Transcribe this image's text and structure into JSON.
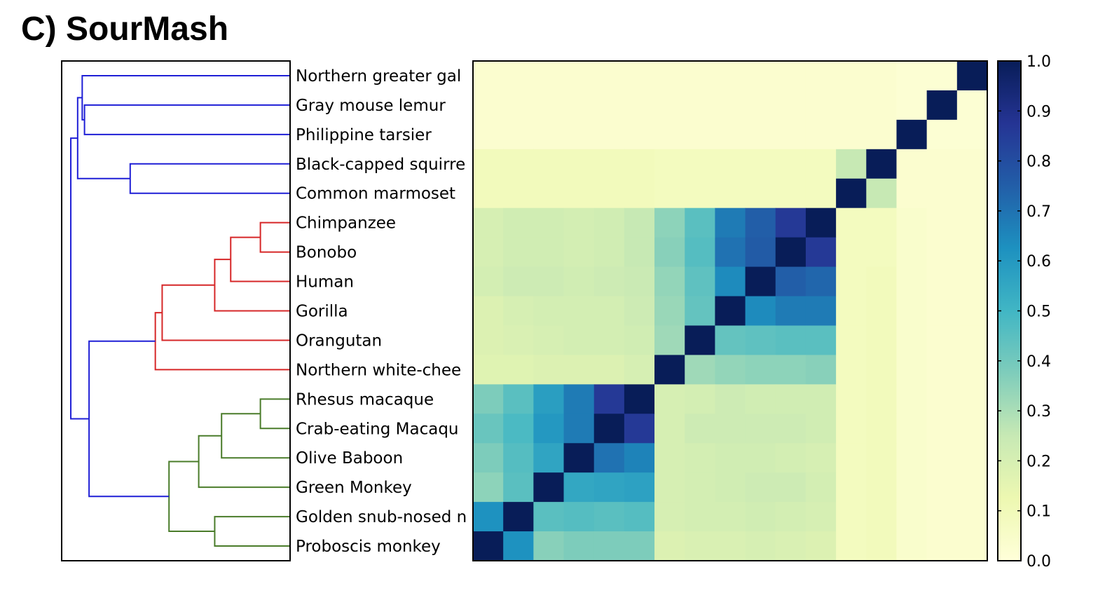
{
  "title": "C) SourMash",
  "chart_data": {
    "type": "heatmap",
    "labels": [
      "Northern greater gal",
      "Gray mouse lemur",
      "Philippine tarsier",
      "Black-capped squirre",
      "Common marmoset",
      "Chimpanzee",
      "Bonobo",
      "Human",
      "Gorilla",
      "Orangutan",
      "Northern white-chee",
      "Rhesus macaque",
      "Crab-eating Macaqu",
      "Olive Baboon",
      "Green Monkey",
      "Golden snub-nosed n",
      "Proboscis monkey"
    ],
    "clades": [
      "blue",
      "blue",
      "blue",
      "blue",
      "blue",
      "red",
      "red",
      "red",
      "red",
      "red",
      "red",
      "green",
      "green",
      "green",
      "green",
      "green",
      "green"
    ],
    "column_order": "reversed rows (diagonal runs bottom-left to top-right)",
    "matrix": [
      [
        1.0,
        0.02,
        0.02,
        0.03,
        0.03,
        0.03,
        0.03,
        0.03,
        0.03,
        0.03,
        0.03,
        0.03,
        0.03,
        0.03,
        0.03,
        0.03,
        0.03
      ],
      [
        0.02,
        1.0,
        0.02,
        0.03,
        0.03,
        0.03,
        0.03,
        0.03,
        0.03,
        0.03,
        0.03,
        0.03,
        0.03,
        0.03,
        0.03,
        0.03,
        0.03
      ],
      [
        0.02,
        0.02,
        1.0,
        0.03,
        0.03,
        0.03,
        0.03,
        0.03,
        0.03,
        0.03,
        0.03,
        0.03,
        0.03,
        0.03,
        0.03,
        0.03,
        0.03
      ],
      [
        0.03,
        0.03,
        0.03,
        1.0,
        0.25,
        0.08,
        0.08,
        0.08,
        0.08,
        0.08,
        0.08,
        0.09,
        0.09,
        0.09,
        0.09,
        0.09,
        0.09
      ],
      [
        0.03,
        0.03,
        0.03,
        0.25,
        1.0,
        0.08,
        0.08,
        0.08,
        0.08,
        0.08,
        0.08,
        0.09,
        0.09,
        0.09,
        0.09,
        0.09,
        0.09
      ],
      [
        0.03,
        0.03,
        0.04,
        0.08,
        0.08,
        1.0,
        0.86,
        0.75,
        0.68,
        0.45,
        0.35,
        0.25,
        0.22,
        0.21,
        0.22,
        0.22,
        0.2
      ],
      [
        0.03,
        0.03,
        0.04,
        0.08,
        0.08,
        0.86,
        1.0,
        0.76,
        0.7,
        0.46,
        0.36,
        0.25,
        0.22,
        0.21,
        0.22,
        0.22,
        0.2
      ],
      [
        0.03,
        0.03,
        0.04,
        0.09,
        0.08,
        0.73,
        0.75,
        1.0,
        0.64,
        0.44,
        0.34,
        0.24,
        0.23,
        0.22,
        0.23,
        0.23,
        0.21
      ],
      [
        0.03,
        0.03,
        0.04,
        0.09,
        0.08,
        0.68,
        0.68,
        0.64,
        1.0,
        0.43,
        0.33,
        0.23,
        0.21,
        0.21,
        0.21,
        0.2,
        0.18
      ],
      [
        0.03,
        0.03,
        0.04,
        0.09,
        0.08,
        0.45,
        0.45,
        0.44,
        0.43,
        1.0,
        0.32,
        0.22,
        0.21,
        0.21,
        0.2,
        0.19,
        0.18
      ],
      [
        0.03,
        0.03,
        0.04,
        0.09,
        0.08,
        0.36,
        0.35,
        0.35,
        0.34,
        0.32,
        1.0,
        0.2,
        0.18,
        0.18,
        0.18,
        0.17,
        0.17
      ],
      [
        0.03,
        0.03,
        0.04,
        0.09,
        0.08,
        0.22,
        0.22,
        0.22,
        0.23,
        0.21,
        0.2,
        1.0,
        0.86,
        0.68,
        0.58,
        0.45,
        0.38
      ],
      [
        0.03,
        0.03,
        0.04,
        0.09,
        0.08,
        0.22,
        0.23,
        0.23,
        0.23,
        0.23,
        0.2,
        0.86,
        1.0,
        0.68,
        0.6,
        0.48,
        0.42
      ],
      [
        0.03,
        0.03,
        0.04,
        0.09,
        0.08,
        0.2,
        0.21,
        0.22,
        0.22,
        0.21,
        0.2,
        0.66,
        0.7,
        1.0,
        0.56,
        0.46,
        0.38
      ],
      [
        0.03,
        0.03,
        0.04,
        0.09,
        0.08,
        0.21,
        0.23,
        0.23,
        0.22,
        0.21,
        0.2,
        0.57,
        0.56,
        0.55,
        1.0,
        0.45,
        0.35
      ],
      [
        0.03,
        0.03,
        0.04,
        0.09,
        0.08,
        0.2,
        0.21,
        0.22,
        0.21,
        0.21,
        0.2,
        0.46,
        0.45,
        0.46,
        0.45,
        1.0,
        0.62
      ],
      [
        0.03,
        0.03,
        0.04,
        0.09,
        0.08,
        0.18,
        0.19,
        0.2,
        0.19,
        0.19,
        0.18,
        0.38,
        0.38,
        0.38,
        0.36,
        0.62,
        1.0
      ]
    ],
    "colorbar": {
      "range": [
        0.0,
        1.0
      ],
      "ticks": [
        "0.0",
        "0.1",
        "0.2",
        "0.3",
        "0.4",
        "0.5",
        "0.6",
        "0.7",
        "0.8",
        "0.9",
        "1.0"
      ],
      "colormap": "YlGnBu"
    },
    "colormap_stops": [
      "#ffffd9",
      "#edf8b1",
      "#c7e9b4",
      "#7fcdbb",
      "#41b6c4",
      "#1d91c0",
      "#225ea8",
      "#253494",
      "#081d58"
    ],
    "dendrogram": {
      "links": [
        {
          "a": "Rhesus macaque",
          "b": "Crab-eating Macaqu",
          "height": 0.13,
          "color": "#4a7c2a"
        },
        {
          "a": "Golden snub-nosed n",
          "b": "Proboscis monkey",
          "height": 0.33,
          "color": "#4a7c2a"
        },
        {
          "a": "[Rhesus macaque,Crab-eating Macaqu]",
          "b": "Olive Baboon",
          "height": 0.3,
          "color": "#4a7c2a"
        },
        {
          "a": "[Rhesus macaque..Olive Baboon]",
          "b": "Green Monkey",
          "height": 0.4,
          "color": "#4a7c2a"
        },
        {
          "a": "[Rhesus macaque..Green Monkey]",
          "b": "[Golden snub-nosed n,Proboscis monkey]",
          "height": 0.53,
          "color": "#4a7c2a"
        },
        {
          "a": "Chimpanzee",
          "b": "Bonobo",
          "height": 0.13,
          "color": "#d62728"
        },
        {
          "a": "[Chimpanzee,Bonobo]",
          "b": "Human",
          "height": 0.26,
          "color": "#d62728"
        },
        {
          "a": "[Chimpanzee..Human]",
          "b": "Gorilla",
          "height": 0.33,
          "color": "#d62728"
        },
        {
          "a": "[Chimpanzee..Gorilla]",
          "b": "Orangutan",
          "height": 0.56,
          "color": "#d62728"
        },
        {
          "a": "[Chimpanzee..Orangutan]",
          "b": "Northern white-chee",
          "height": 0.59,
          "color": "#d62728"
        },
        {
          "a": "[Chimpanzee..Northern white-chee]",
          "b": "[Rhesus macaque..Proboscis monkey]",
          "height": 0.88,
          "color": "#1f1fd6"
        },
        {
          "a": "Black-capped squirre",
          "b": "Common marmoset",
          "height": 0.7,
          "color": "#1f1fd6"
        },
        {
          "a": "Gray mouse lemur",
          "b": "Philippine tarsier",
          "height": 0.9,
          "color": "#1f1fd6"
        },
        {
          "a": "Northern greater gal",
          "b": "[Gray mouse lemur,Philippine tarsier]",
          "height": 0.91,
          "color": "#1f1fd6"
        },
        {
          "a": "[Northern greater gal..Philippine tarsier]",
          "b": "[Black-capped squirre,Common marmoset]",
          "height": 0.93,
          "color": "#1f1fd6"
        },
        {
          "a": "[Northern greater gal..Common marmoset]",
          "b": "[Chimpanzee..Proboscis monkey]",
          "height": 0.96,
          "color": "#1f1fd6"
        }
      ]
    }
  }
}
